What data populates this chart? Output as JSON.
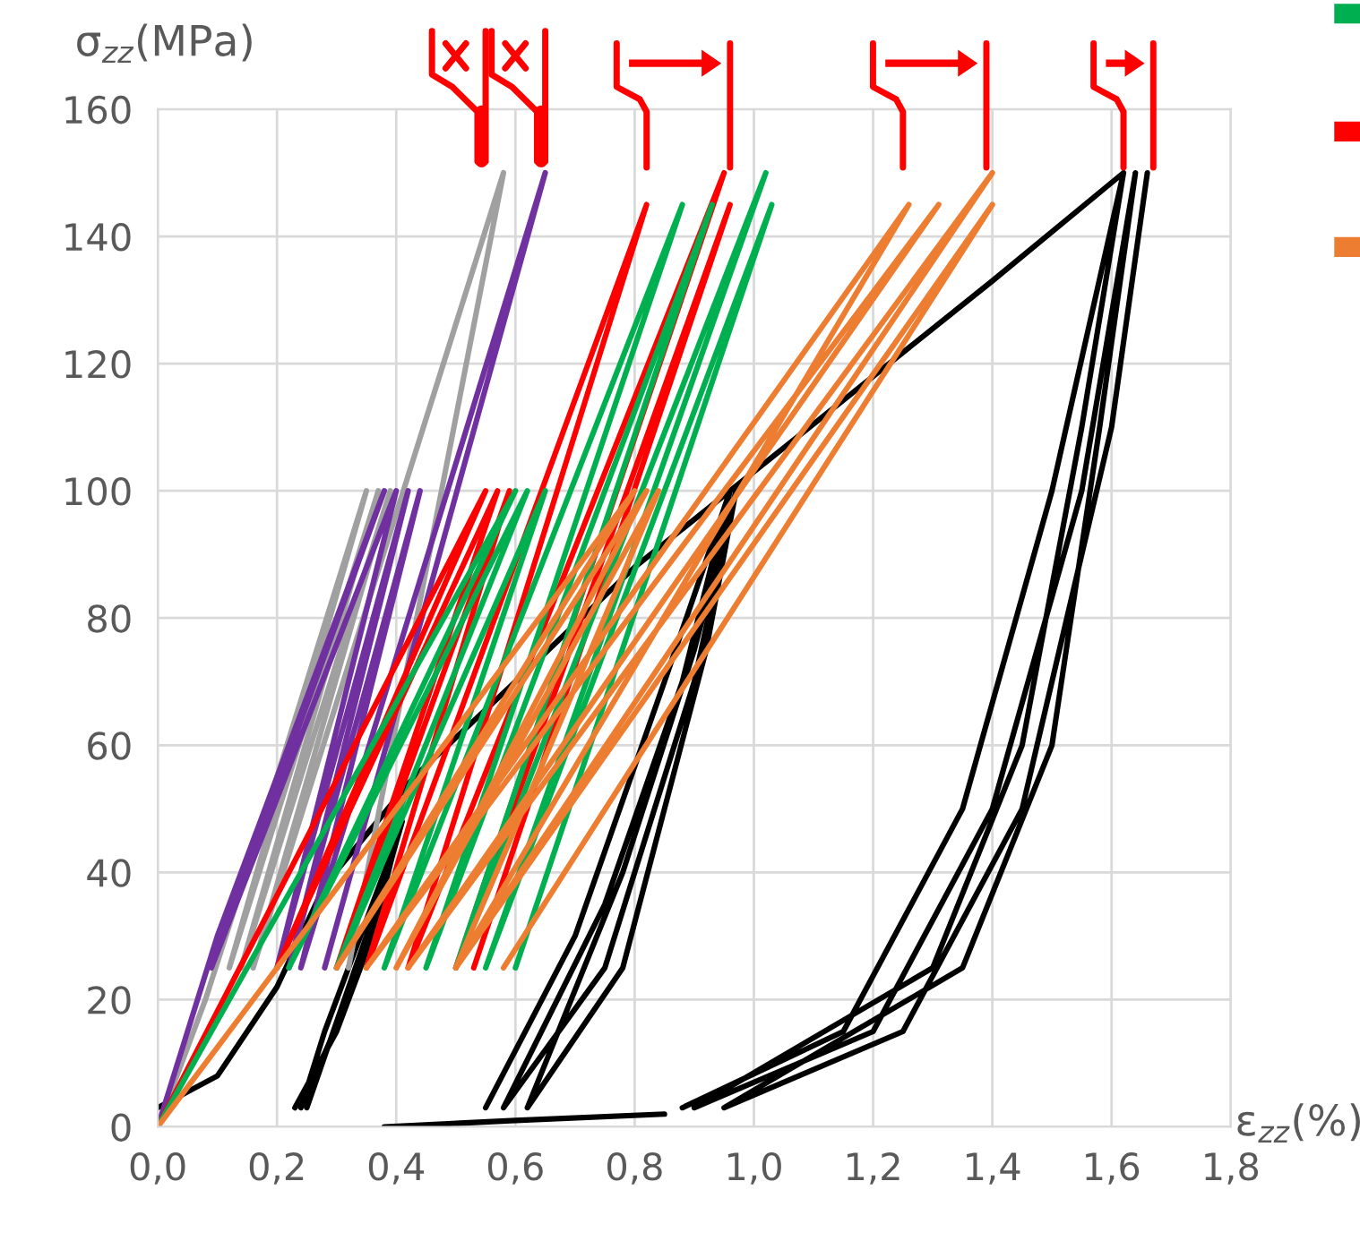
{
  "chart_data": {
    "type": "line",
    "xlabel": "ε$_{zz}$(%)",
    "ylabel": "σ$_{zz}$(MPa)",
    "xlim": [
      0,
      1.8
    ],
    "ylim": [
      0,
      160
    ],
    "xticks": [
      {
        "value": 0,
        "label": "0,0"
      },
      {
        "value": 0.2,
        "label": "0,2"
      },
      {
        "value": 0.4,
        "label": "0,4"
      },
      {
        "value": 0.6,
        "label": "0,6"
      },
      {
        "value": 0.8,
        "label": "0,8"
      },
      {
        "value": 1.0,
        "label": "1,0"
      },
      {
        "value": 1.2,
        "label": "1,2"
      },
      {
        "value": 1.4,
        "label": "1,4"
      },
      {
        "value": 1.6,
        "label": "1,6"
      },
      {
        "value": 1.8,
        "label": "1,8"
      }
    ],
    "yticks": [
      0,
      20,
      40,
      60,
      80,
      100,
      120,
      140,
      160
    ],
    "grid": true,
    "marker": "none",
    "line_style": "solid",
    "series": [
      {
        "color": "#000000",
        "x": [
          0,
          0.1,
          0.2,
          0.28,
          0.43,
          0.6,
          0.8,
          0.96,
          1.2,
          1.4,
          1.62,
          null,
          0.23,
          0.3,
          0.36,
          0.4,
          0.34,
          0.28,
          0.24,
          0.31,
          0.37,
          0.41,
          0.35,
          0.25,
          null,
          0.55,
          0.7,
          0.85,
          0.96,
          0.88,
          0.75,
          0.58,
          0.75,
          0.9,
          0.97,
          0.9,
          0.78,
          0.62,
          0.78,
          0.92,
          0.97,
          null,
          0.88,
          1.15,
          1.35,
          1.5,
          1.62,
          1.55,
          1.45,
          1.3,
          0.9,
          1.2,
          1.4,
          1.55,
          1.64,
          1.58,
          1.5,
          1.35,
          0.95,
          1.25,
          1.45,
          1.6,
          1.66,
          null,
          0.38,
          0.6,
          0.85
        ],
        "values": [
          3,
          8,
          22,
          38,
          55,
          70,
          88,
          100,
          118,
          133,
          150,
          null,
          3,
          15,
          30,
          45,
          30,
          15,
          3,
          18,
          35,
          48,
          30,
          3,
          null,
          3,
          30,
          70,
          100,
          70,
          35,
          3,
          25,
          70,
          100,
          75,
          40,
          3,
          25,
          75,
          100,
          null,
          3,
          15,
          50,
          100,
          150,
          110,
          60,
          25,
          3,
          15,
          50,
          100,
          150,
          110,
          60,
          25,
          3,
          15,
          50,
          110,
          150,
          null,
          0,
          1,
          2
        ]
      },
      {
        "color": "#a0a0a0",
        "x": [
          0,
          0.08,
          0.2,
          0.35,
          0.12,
          0.37,
          0.14,
          0.39,
          0.16,
          0.58,
          0.32
        ],
        "values": [
          0,
          20,
          55,
          100,
          25,
          100,
          25,
          100,
          25,
          150,
          25
        ]
      },
      {
        "color": "#7030a0",
        "x": [
          0,
          0.1,
          0.38,
          0.09,
          0.4,
          0.2,
          0.42,
          0.22,
          0.44,
          0.24,
          0.65,
          0.28
        ],
        "values": [
          0,
          30,
          100,
          25,
          100,
          25,
          100,
          25,
          100,
          25,
          150,
          25
        ]
      },
      {
        "color": "#ff0000",
        "x": [
          0,
          0.55,
          0.2,
          0.57,
          0.3,
          0.59,
          0.35,
          0.82,
          0.42,
          0.95,
          0.5,
          0.96,
          0.53
        ],
        "values": [
          0,
          100,
          25,
          100,
          25,
          100,
          25,
          145,
          25,
          150,
          25,
          145,
          25
        ]
      },
      {
        "color": "#00b050",
        "x": [
          0,
          0.6,
          0.22,
          0.62,
          0.3,
          0.65,
          0.38,
          0.88,
          0.45,
          0.93,
          0.5,
          1.02,
          0.55,
          1.03,
          0.6
        ],
        "values": [
          0,
          100,
          25,
          100,
          25,
          100,
          25,
          145,
          25,
          145,
          25,
          150,
          25,
          145,
          25
        ]
      },
      {
        "color": "#ed7d31",
        "x": [
          0,
          0.8,
          0.3,
          0.82,
          0.4,
          0.84,
          0.5,
          1.26,
          0.35,
          1.31,
          0.42,
          1.4,
          0.5,
          1.4,
          0.58
        ],
        "values": [
          0,
          100,
          25,
          100,
          25,
          100,
          25,
          145,
          25,
          145,
          25,
          150,
          25,
          145,
          25
        ]
      }
    ]
  }
}
